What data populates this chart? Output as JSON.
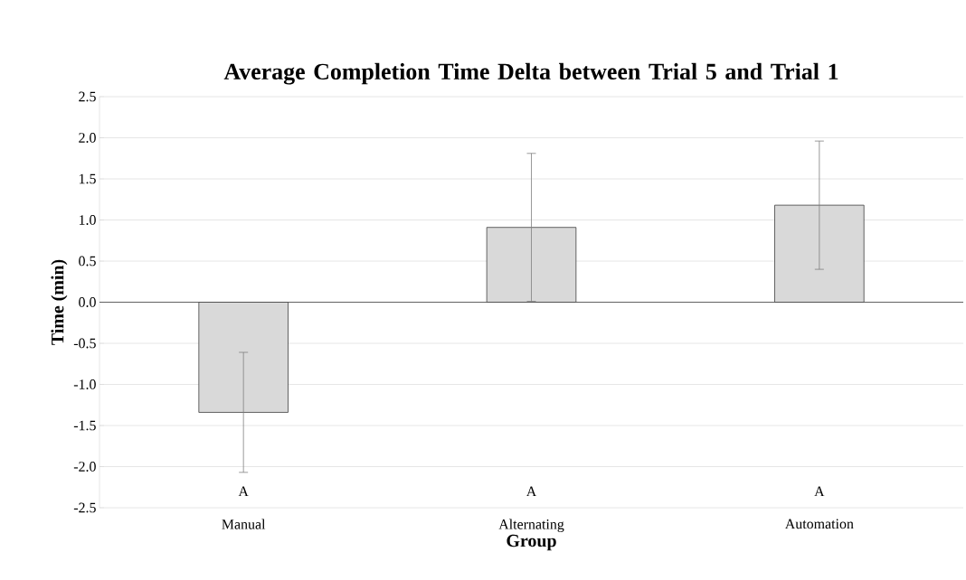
{
  "chart_data": {
    "type": "bar",
    "title": "Average Completion Time Delta between Trial 5 and Trial 1",
    "xlabel": "Group",
    "ylabel": "Time (min)",
    "categories": [
      "Manual",
      "Alternating",
      "Automation"
    ],
    "values": [
      -1.34,
      0.91,
      1.18
    ],
    "errors": [
      0.73,
      0.9,
      0.78
    ],
    "color": "#d9d9d9",
    "ylim": [
      -2.5,
      2.5
    ],
    "yticks": [
      {
        "value": -2.5,
        "label": "-2.5"
      },
      {
        "value": -2.0,
        "label": "-2.0"
      },
      {
        "value": -1.5,
        "label": "-1.5"
      },
      {
        "value": -1.0,
        "label": "-1.0"
      },
      {
        "value": -0.5,
        "label": "-0.5"
      },
      {
        "value": 0,
        "label": "0.0"
      },
      {
        "value": 0.5,
        "label": "0.5"
      },
      {
        "value": 1.0,
        "label": "1.0"
      },
      {
        "value": 1.5,
        "label": "1.5"
      },
      {
        "value": 2.0,
        "label": "2.0"
      },
      {
        "value": 2.5,
        "label": "2.5"
      }
    ],
    "grid": "y",
    "annotations": [
      "A",
      "A",
      "A"
    ]
  }
}
